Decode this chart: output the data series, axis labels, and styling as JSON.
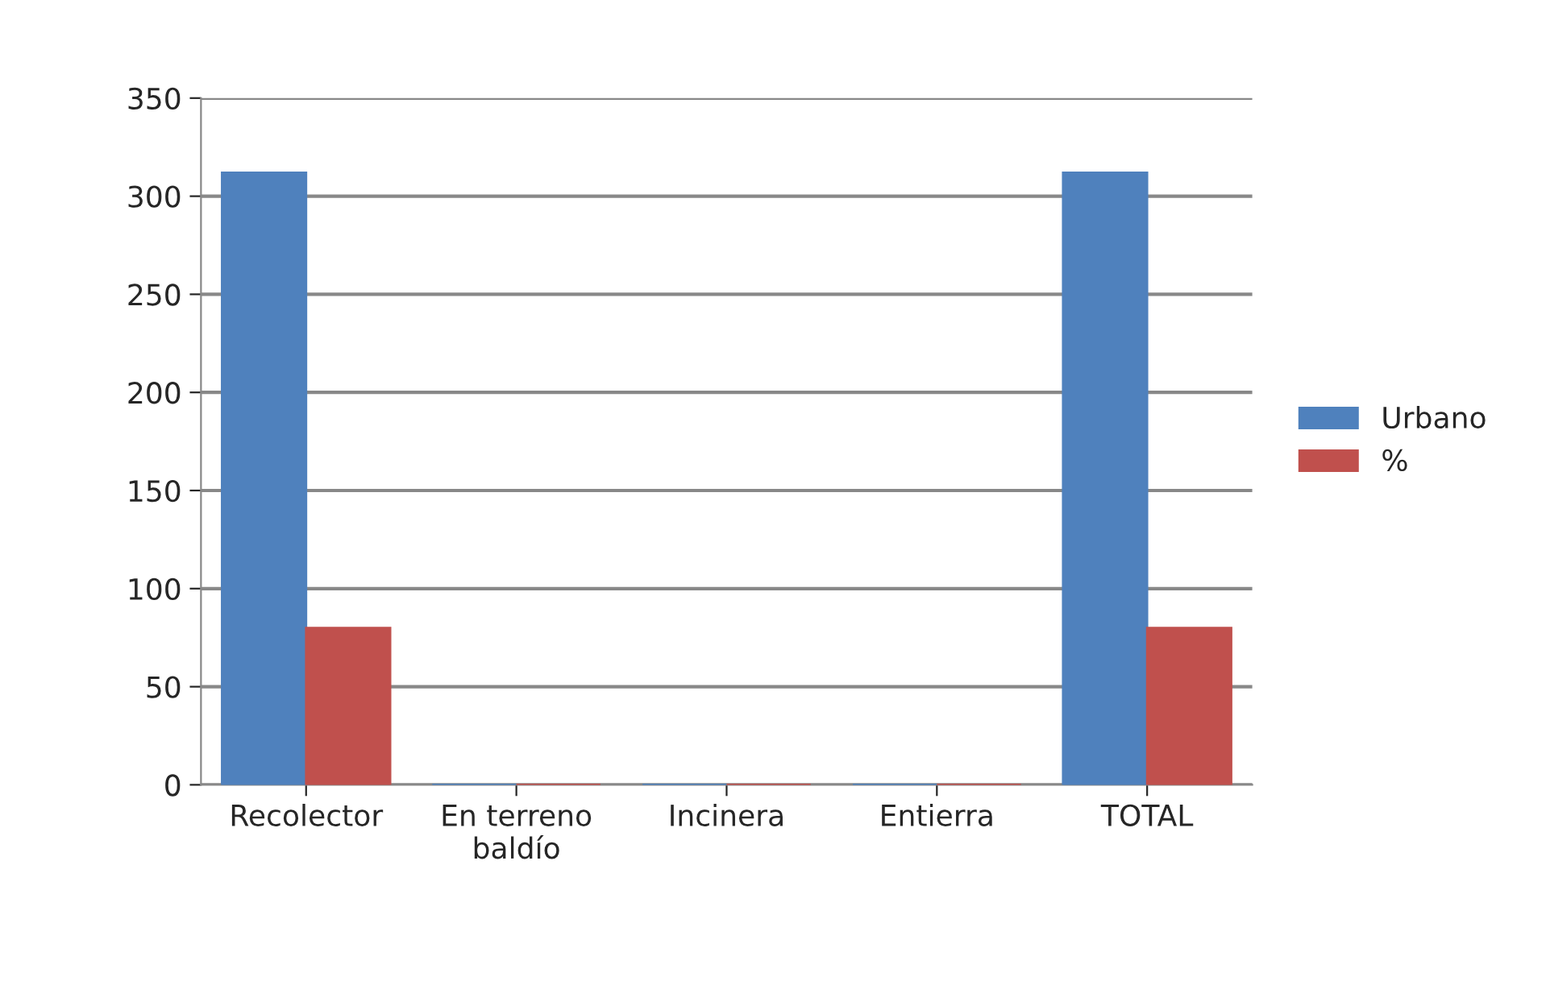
{
  "chart_data": {
    "type": "bar",
    "categories": [
      "Recolector",
      "En terreno\nbaldío",
      "Incinera",
      "Entierra",
      "TOTAL"
    ],
    "series": [
      {
        "name": "Urbano",
        "color": "#4f81bd",
        "values": [
          312,
          0,
          0,
          0,
          312
        ]
      },
      {
        "name": "%",
        "color": "#c0504d",
        "values": [
          80,
          0,
          0,
          0,
          80
        ]
      }
    ],
    "ylim": [
      0,
      350
    ],
    "yticks": [
      0,
      50,
      100,
      150,
      200,
      250,
      300,
      350
    ],
    "grid": "y",
    "legend": "right"
  }
}
